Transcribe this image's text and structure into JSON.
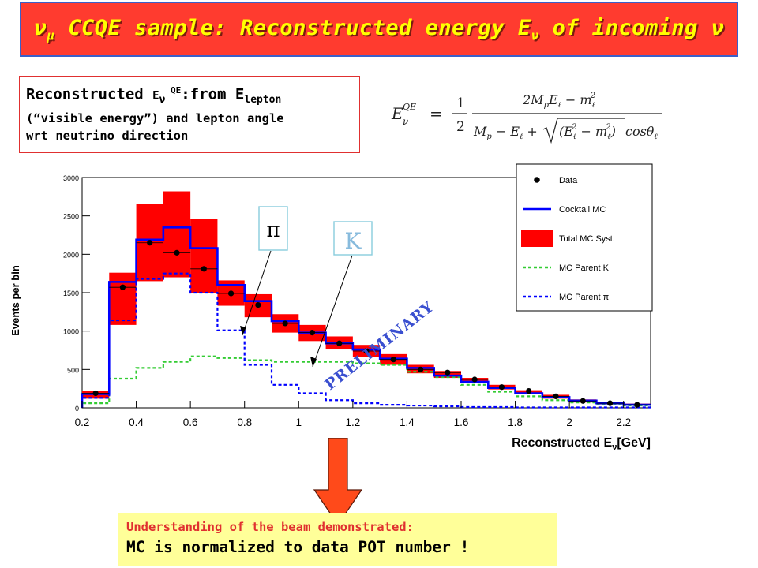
{
  "title": {
    "nu": "ν",
    "mu_sub": "μ",
    "main": " CCQE sample: Reconstructed energy E",
    "nu_sub": "ν",
    "tail": " of incoming ν"
  },
  "recon_box": {
    "prefix": "Reconstructed ",
    "e": "E",
    "nu": "ν",
    "qe": " QE",
    "from": ":from E",
    "lepton": "lepton",
    "line2": "(“visible energy”) and lepton angle",
    "line3": "wrt neutrino direction"
  },
  "formula": {
    "lhs": "E",
    "lhs_sup": "QE",
    "lhs_sub": "ν",
    "eq": "=",
    "half_num": "1",
    "half_den": "2",
    "numerator": "2M",
    "num_p": "p",
    "num_e": "E",
    "num_l": "ℓ",
    "num_minus": " − m",
    "num_sq": "2",
    "denom_start": "M",
    "den_p": "p",
    "den_minus_e": " − E",
    "den_l": "ℓ",
    "den_plus": " + ",
    "den_sqrt_inner": "(E",
    "den_sqrt_sq": "2",
    "den_sqrt_mid": " − m",
    "den_sqrt_tail": ")",
    "den_cos": "cosθ"
  },
  "chart_data": {
    "type": "bar",
    "ylabel": "Events per bin",
    "xlabel": "Reconstructed E",
    "xlabel_sub": "ν",
    "xlabel_unit": "[GeV]",
    "xlim": [
      0.2,
      2.3
    ],
    "ylim": [
      0,
      3000
    ],
    "x_ticks": [
      "0.2",
      "0.4",
      "0.6",
      "0.8",
      "1",
      "1.2",
      "1.4",
      "1.6",
      "1.8",
      "2",
      "2.2"
    ],
    "y_ticks": [
      "0",
      "500",
      "1000",
      "1500",
      "2000",
      "2500",
      "3000"
    ],
    "bin_edges": [
      0.2,
      0.3,
      0.4,
      0.5,
      0.6,
      0.7,
      0.8,
      0.9,
      1.0,
      1.1,
      1.2,
      1.3,
      1.4,
      1.5,
      1.6,
      1.7,
      1.8,
      1.9,
      2.0,
      2.1,
      2.2,
      2.3
    ],
    "data_x": [
      0.25,
      0.35,
      0.45,
      0.55,
      0.65,
      0.75,
      0.85,
      0.95,
      1.05,
      1.15,
      1.25,
      1.35,
      1.45,
      1.55,
      1.65,
      1.75,
      1.85,
      1.95,
      2.05,
      2.15,
      2.25
    ],
    "data_y": [
      190,
      1570,
      2150,
      2020,
      1810,
      1490,
      1340,
      1100,
      980,
      840,
      740,
      630,
      500,
      460,
      370,
      270,
      220,
      150,
      90,
      60,
      40
    ],
    "syst_low": [
      120,
      1080,
      1650,
      1700,
      1500,
      1330,
      1180,
      980,
      870,
      760,
      660,
      560,
      450,
      390,
      320,
      240,
      180,
      120,
      70,
      45,
      30
    ],
    "syst_high": [
      220,
      1760,
      2660,
      2820,
      2460,
      1660,
      1480,
      1220,
      1080,
      930,
      820,
      700,
      560,
      480,
      390,
      300,
      230,
      170,
      110,
      75,
      55
    ],
    "cocktail": [
      180,
      1640,
      2190,
      2350,
      2080,
      1600,
      1390,
      1130,
      980,
      840,
      760,
      640,
      520,
      420,
      340,
      260,
      190,
      140,
      95,
      60,
      40
    ],
    "parent_k": [
      60,
      380,
      520,
      600,
      670,
      650,
      620,
      600,
      600,
      600,
      580,
      560,
      470,
      400,
      300,
      210,
      150,
      100,
      70,
      50,
      30
    ],
    "parent_pi": [
      130,
      1140,
      1680,
      1750,
      1500,
      1010,
      560,
      300,
      190,
      100,
      60,
      40,
      30,
      20,
      10,
      10,
      5,
      5,
      5,
      5,
      5
    ],
    "legend_placement": "top-right",
    "legend": [
      {
        "label": "Data",
        "style": "dot",
        "color": "#000000"
      },
      {
        "label": "Cocktail MC",
        "style": "line",
        "color": "#0000ff"
      },
      {
        "label": "Total MC Syst.",
        "style": "box",
        "color": "#ff0000"
      },
      {
        "label": "MC Parent K",
        "style": "dash",
        "color": "#33cc33"
      },
      {
        "label": "MC Parent π",
        "style": "dash",
        "color": "#0000ff"
      }
    ],
    "annotations": {
      "pi_label": "π",
      "k_label": "K",
      "preliminary": "PRELIMINARY"
    },
    "colors": {
      "syst": "#ff0000",
      "cocktail": "#0000ff",
      "parent_k": "#33cc33",
      "parent_pi": "#0000ff",
      "data": "#000000"
    }
  },
  "bottom_box": {
    "line1": "Understanding of the beam demonstrated:",
    "line2": "MC is normalized to data POT number !"
  },
  "colors": {
    "banner_bg": "#ff3b2f",
    "banner_text": "#ffff00",
    "arrow": "#ff4a1a",
    "bottom_bg": "#ffff99"
  }
}
